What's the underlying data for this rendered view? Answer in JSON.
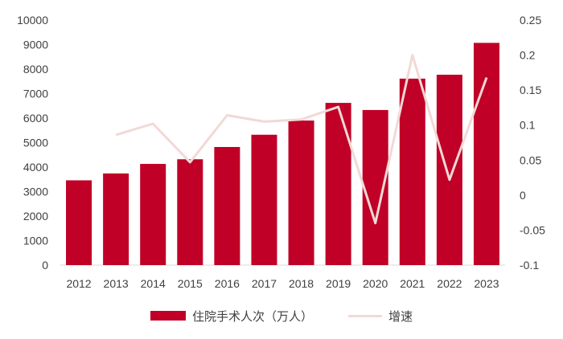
{
  "chart_data": {
    "type": "bar",
    "categories": [
      "2012",
      "2013",
      "2014",
      "2015",
      "2016",
      "2017",
      "2018",
      "2019",
      "2020",
      "2021",
      "2022",
      "2023"
    ],
    "series": [
      {
        "name": "住院手术人次（万人）",
        "type": "bar",
        "axis": "left",
        "color": "#C00027",
        "values": [
          3460,
          3740,
          4130,
          4320,
          4820,
          5320,
          5900,
          6620,
          6330,
          7610,
          7770,
          9070
        ]
      },
      {
        "name": "增速",
        "type": "line",
        "axis": "right",
        "color": "#F2D9D6",
        "values": [
          null,
          0.086,
          0.102,
          0.047,
          0.114,
          0.105,
          0.108,
          0.126,
          -0.04,
          0.2,
          0.022,
          0.168
        ]
      }
    ],
    "y_left": {
      "min": 0,
      "max": 10000,
      "step": 1000,
      "ticks": [
        "0",
        "1000",
        "2000",
        "3000",
        "4000",
        "5000",
        "6000",
        "7000",
        "8000",
        "9000",
        "10000"
      ]
    },
    "y_right": {
      "min": -0.1,
      "max": 0.25,
      "step": 0.05,
      "ticks": [
        "-0.1",
        "-0.05",
        "0",
        "0.05",
        "0.1",
        "0.15",
        "0.2",
        "0.25"
      ]
    },
    "grid": false,
    "legend_position": "bottom"
  }
}
